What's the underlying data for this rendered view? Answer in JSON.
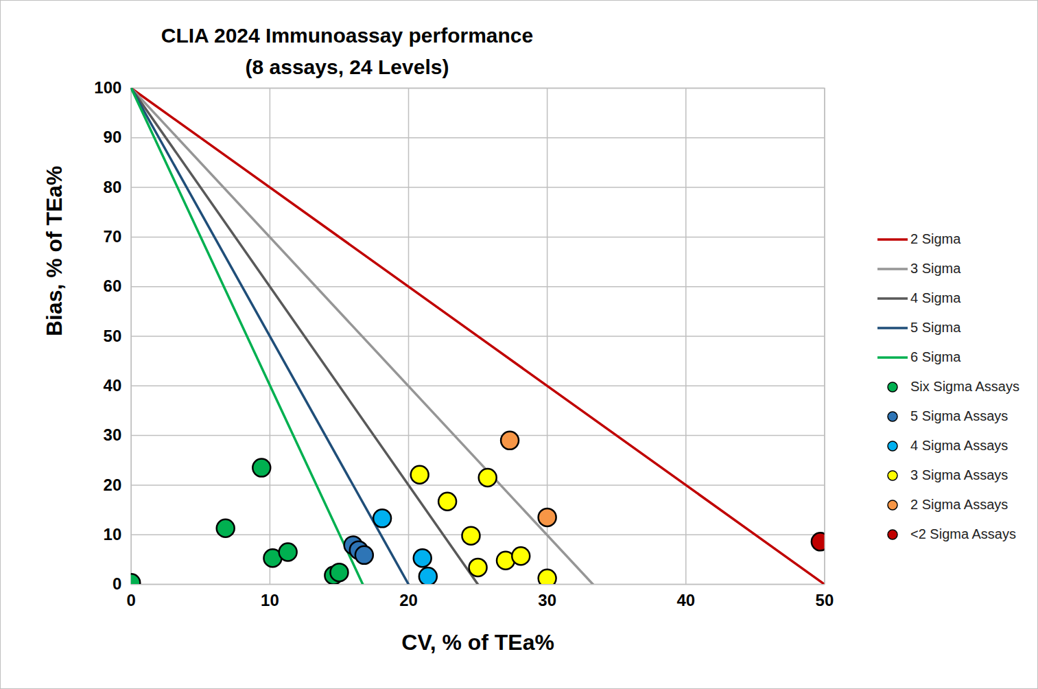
{
  "chart_data": {
    "type": "scatter",
    "title": "CLIA 2024 Immunoassay performance",
    "subtitle": "(8 assays, 24 Levels)",
    "x_label": "CV, % of TEa%",
    "y_label": "Bias, % of TEa%",
    "xlim": [
      0,
      50
    ],
    "ylim": [
      0,
      100
    ],
    "xticks": [
      0,
      10,
      20,
      30,
      40,
      50
    ],
    "yticks": [
      0,
      10,
      20,
      30,
      40,
      50,
      60,
      70,
      80,
      90,
      100
    ],
    "grid": true,
    "legend": "right",
    "series": [
      {
        "name": "2 Sigma",
        "type": "line",
        "color": "#c00000",
        "x": [
          0,
          50
        ],
        "values": [
          100,
          0
        ]
      },
      {
        "name": "3 Sigma",
        "type": "line",
        "color": "#969696",
        "x": [
          0,
          33.3
        ],
        "values": [
          100,
          0
        ]
      },
      {
        "name": "4 Sigma",
        "type": "line",
        "color": "#595959",
        "x": [
          0,
          25
        ],
        "values": [
          100,
          0
        ]
      },
      {
        "name": "5 Sigma",
        "type": "line",
        "color": "#1f4e79",
        "x": [
          0,
          20
        ],
        "values": [
          100,
          0
        ]
      },
      {
        "name": "6 Sigma",
        "type": "line",
        "color": "#00b050",
        "x": [
          0,
          16.7
        ],
        "values": [
          100,
          0
        ]
      },
      {
        "name": "Six Sigma Assays",
        "type": "scatter",
        "color": "#00b050",
        "x": [
          0,
          6.8,
          9.4,
          10.2,
          11.3,
          14.6,
          15
        ],
        "values": [
          0.3,
          11.3,
          23.5,
          5.3,
          6.5,
          1.8,
          2.4
        ]
      },
      {
        "name": "5 Sigma Assays",
        "type": "scatter",
        "color": "#2e75b6",
        "x": [
          16,
          16.4,
          16.8
        ],
        "values": [
          7.9,
          6.9,
          5.9
        ]
      },
      {
        "name": "4 Sigma Assays",
        "type": "scatter",
        "color": "#00b0f0",
        "x": [
          18.1,
          21,
          21.4
        ],
        "values": [
          13.3,
          5.3,
          1.6
        ]
      },
      {
        "name": "3 Sigma Assays",
        "type": "scatter",
        "color": "#ffff00",
        "x": [
          20.8,
          22.8,
          24.5,
          25,
          25.7,
          27,
          28.1,
          30
        ],
        "values": [
          22.1,
          16.7,
          9.8,
          3.4,
          21.5,
          4.8,
          5.7,
          1.2
        ]
      },
      {
        "name": "2 Sigma Assays",
        "type": "scatter",
        "color": "#f79646",
        "x": [
          27.3,
          30
        ],
        "values": [
          29,
          13.5
        ]
      },
      {
        "name": "<2 Sigma Assays",
        "type": "scatter",
        "color": "#c00000",
        "x": [
          49.7
        ],
        "values": [
          8.6
        ]
      }
    ]
  }
}
